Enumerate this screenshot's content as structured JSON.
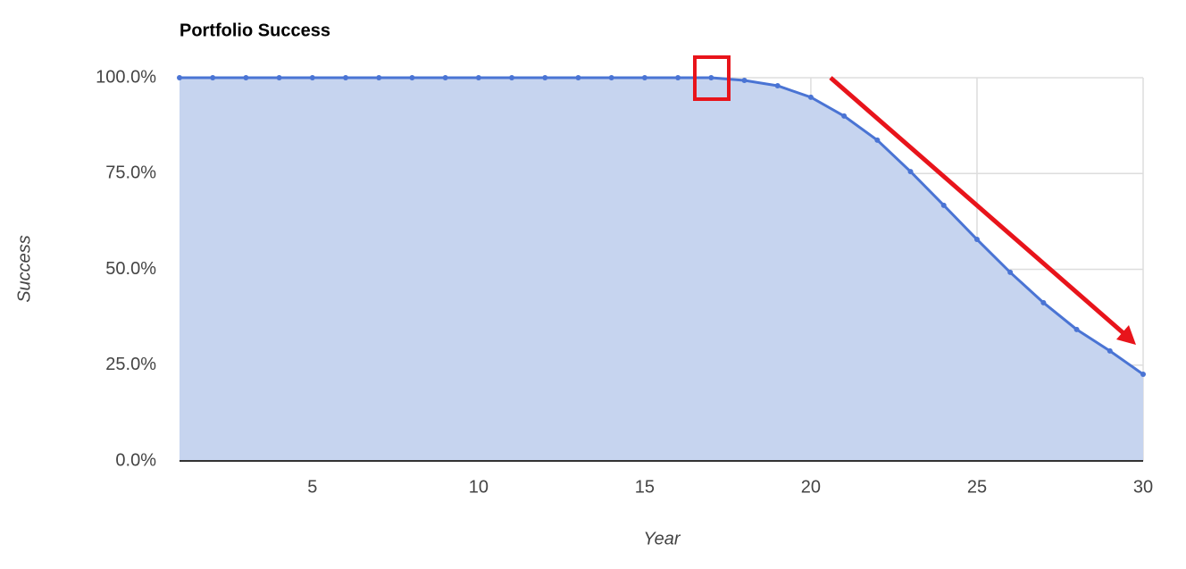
{
  "chart_data": {
    "type": "area",
    "title": "Portfolio Success",
    "x_label": "Year",
    "y_label": "Success",
    "x": [
      1,
      2,
      3,
      4,
      5,
      6,
      7,
      8,
      9,
      10,
      11,
      12,
      13,
      14,
      15,
      16,
      17,
      18,
      19,
      20,
      21,
      22,
      23,
      24,
      25,
      26,
      27,
      28,
      29,
      30
    ],
    "series": [
      {
        "name": "Success",
        "color": "#4a74d4",
        "values": [
          100,
          100,
          100,
          100,
          100,
          100,
          100,
          100,
          100,
          100,
          100,
          100,
          100,
          100,
          100,
          100,
          100,
          99.3,
          97.9,
          94.9,
          90.0,
          83.7,
          75.5,
          66.7,
          57.8,
          49.2,
          41.3,
          34.3,
          28.7,
          22.6
        ]
      }
    ],
    "fill_color": "#c6d4ef",
    "xlim": [
      1,
      30
    ],
    "xticks": [
      5,
      10,
      15,
      20,
      25,
      30
    ],
    "ylim": [
      0,
      100
    ],
    "yticks": [
      {
        "value": 0,
        "label": "0.0%"
      },
      {
        "value": 25,
        "label": "25.0%"
      },
      {
        "value": 50,
        "label": "50.0%"
      },
      {
        "value": 75,
        "label": "75.0%"
      },
      {
        "value": 100,
        "label": "100.0%"
      }
    ],
    "grid": true
  }
}
